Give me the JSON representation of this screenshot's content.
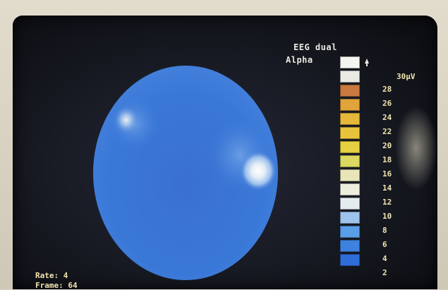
{
  "header": {
    "line1": "EEG  dual",
    "line2": "Alpha"
  },
  "scale": {
    "unit_label": "30µV",
    "ticks": [
      "30µV",
      "28",
      "26",
      "24",
      "22",
      "20",
      "18",
      "16",
      "14",
      "12",
      "10",
      "8",
      "6",
      "4",
      "2"
    ],
    "colors": [
      "#f4f4f0",
      "#eaeae4",
      "#c87a40",
      "#e0a43a",
      "#e6b83a",
      "#e8c43c",
      "#e4d040",
      "#dcd860",
      "#e8e6b8",
      "#eeeede",
      "#e4ecf0",
      "#9ec4ec",
      "#5b9ee8",
      "#3e82e0",
      "#2e6cd8"
    ]
  },
  "info": {
    "rate": "Rate: 4",
    "frame": "Frame: 64"
  },
  "map": {
    "base_color": "#3a74d4"
  }
}
